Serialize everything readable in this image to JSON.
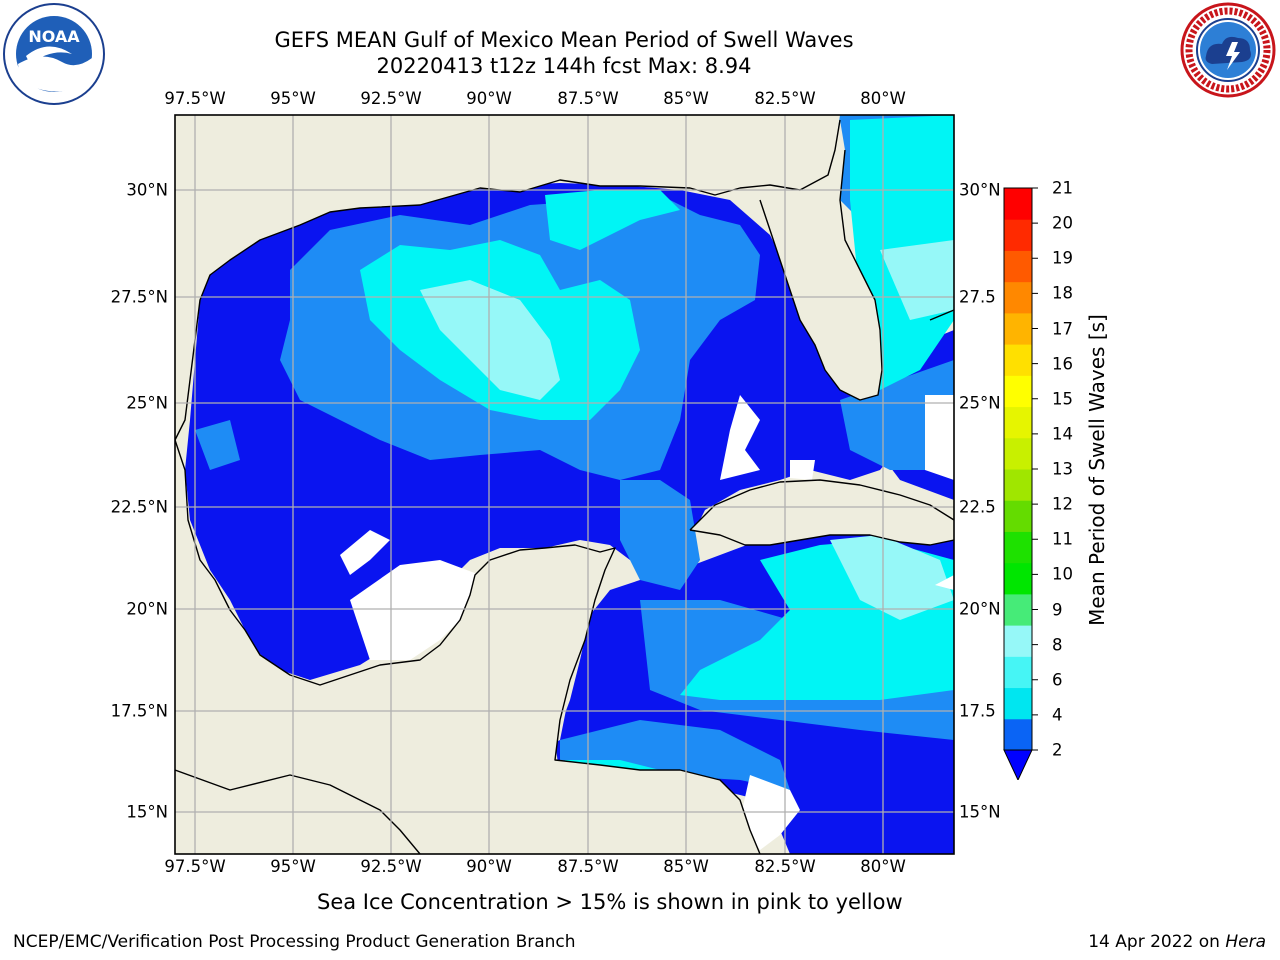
{
  "title": {
    "line1": "GEFS MEAN Gulf of Mexico Mean Period of Swell Waves",
    "line2": "20220413 t12z 144h fcst   Max: 8.94"
  },
  "logos": {
    "left": {
      "name": "NOAA",
      "ring_text": "NATIONAL OCEANIC AND ATMOSPHERIC ADMINISTRATION · U.S. DEPARTMENT OF COMMERCE"
    },
    "right": {
      "ring_text": "NATIONAL WEATHER SERVICE"
    }
  },
  "map": {
    "lon_labels": [
      "97.5°W",
      "95°W",
      "92.5°W",
      "90°W",
      "87.5°W",
      "85°W",
      "82.5°W",
      "80°W"
    ],
    "lat_labels_left": [
      "30°N",
      "27.5°N",
      "25°N",
      "22.5°N",
      "20°N",
      "17.5°N",
      "15°N"
    ],
    "lat_labels_right": [
      "30°N",
      "27.5",
      "25°N",
      "22.5",
      "20°N",
      "17.5",
      "15°N"
    ],
    "colors": {
      "land": "#eeedde",
      "no_data": "#ffffff",
      "gridline": "#b0b0b0",
      "coast": "#000000"
    }
  },
  "colorbar": {
    "title": "Mean Period of Swell Waves [s]",
    "tick_labels": [
      "2",
      "4",
      "6",
      "8",
      "9",
      "10",
      "11",
      "12",
      "13",
      "14",
      "15",
      "16",
      "17",
      "18",
      "19",
      "20",
      "21"
    ],
    "colors": [
      "#0a64f5",
      "#00e6f0",
      "#46f5f5",
      "#96f8f8",
      "#46eb78",
      "#00e600",
      "#1ee100",
      "#64dc00",
      "#a0e600",
      "#c8f000",
      "#e6f500",
      "#ffff00",
      "#ffe000",
      "#ffb400",
      "#ff8800",
      "#ff5a00",
      "#ff2a00",
      "#ff0000"
    ],
    "extend_color": "#0000ff"
  },
  "footnote": "Sea Ice Concentration > 15% is shown in pink to yellow",
  "credit": {
    "left": "NCEP/EMC/Verification Post Processing Product Generation Branch",
    "date": "14 Apr 2022 on ",
    "machine": "Hera"
  }
}
